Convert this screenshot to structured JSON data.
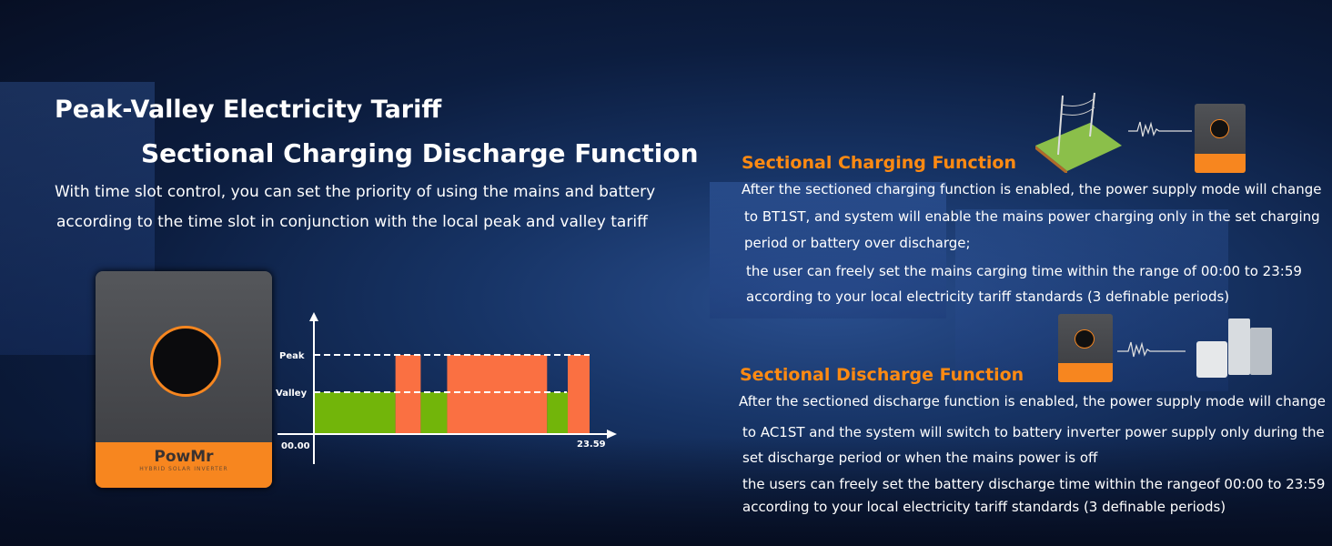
{
  "heading": {
    "line1": "Peak-Valley Electricity Tariff",
    "line2": "Sectional Charging Discharge Function"
  },
  "intro": [
    "With time slot control, you can set the priority of using the mains and battery",
    "according to the time slot in conjunction with the local peak and valley tariff"
  ],
  "product": {
    "brand": "PowMr",
    "subtitle": "HYBRID SOLAR INVERTER"
  },
  "chart_data": {
    "type": "bar",
    "y_levels": [
      "Valley",
      "Peak"
    ],
    "x_labels": {
      "start": "00.00",
      "end": "23.59"
    },
    "xlim": [
      0,
      24
    ],
    "segments": [
      {
        "start": 0,
        "end": 7.1,
        "level": "Valley"
      },
      {
        "start": 7.1,
        "end": 9.3,
        "level": "Peak"
      },
      {
        "start": 9.3,
        "end": 11.6,
        "level": "Valley"
      },
      {
        "start": 11.6,
        "end": 20.3,
        "level": "Peak"
      },
      {
        "start": 20.3,
        "end": 22.1,
        "level": "Valley"
      },
      {
        "start": 22.1,
        "end": 24,
        "level": "Peak"
      }
    ],
    "colors": {
      "Valley": "#72b50a",
      "Peak": "#fa7042"
    }
  },
  "charging": {
    "title": "Sectional Charging Function",
    "lines": [
      "After the sectioned charging function is enabled, the power supply mode will change",
      "to BT1ST, and system will enable the mains power charging only in the set charging",
      "period or battery over discharge;",
      "the user can freely set the mains carging time within the range of 00:00 to 23:59",
      "according to your local electricity tariff standards (3 definable periods)"
    ]
  },
  "discharge": {
    "title": "Sectional Discharge Function",
    "lines": [
      "After the sectioned discharge function is enabled, the power supply mode will change",
      "to AC1ST and the system will switch to battery inverter power supply only during the",
      "set discharge period or when the mains power is off",
      "the users can freely set the battery discharge time within the rangeof 00:00 to 23:59",
      "according to your local electricity tariff standards (3 definable periods)"
    ]
  },
  "colors": {
    "accent": "#ff8a12",
    "text": "#ffffff",
    "background": "#0c1d3f"
  }
}
